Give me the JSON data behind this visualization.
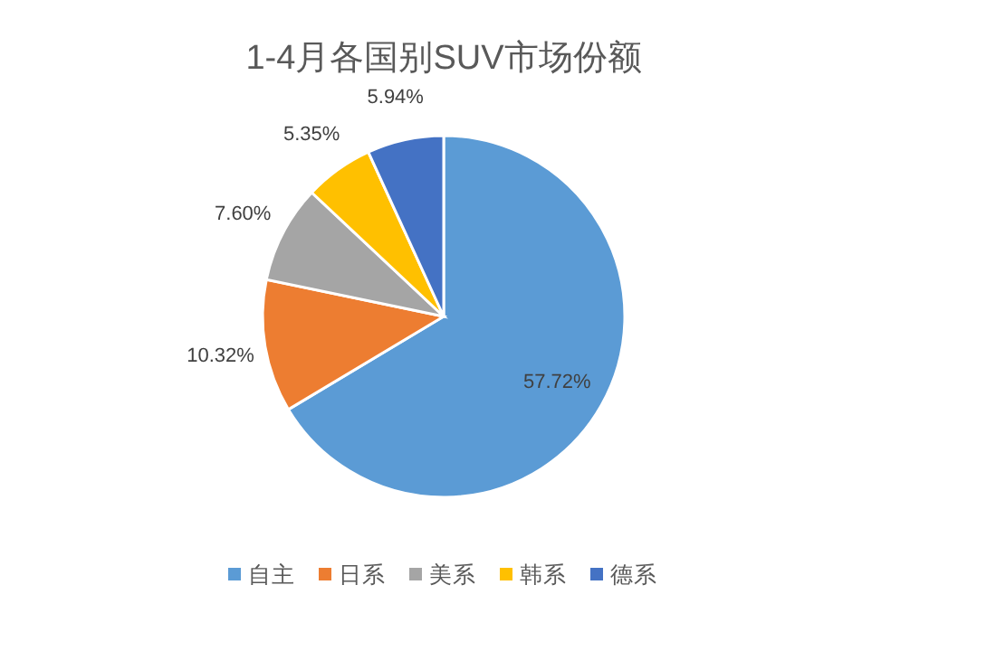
{
  "chart_data": {
    "type": "pie",
    "title": "1-4月各国别SUV市场份额",
    "categories": [
      "自主",
      "日系",
      "美系",
      "韩系",
      "德系"
    ],
    "values": [
      57.72,
      10.32,
      7.6,
      5.35,
      5.94
    ],
    "value_labels": [
      "57.72%",
      "10.32%",
      "7.60%",
      "5.35%",
      "5.94%"
    ],
    "colors": [
      "#5b9bd5",
      "#ed7d31",
      "#a5a5a5",
      "#ffc000",
      "#4472c4"
    ],
    "legend": "bottom"
  }
}
